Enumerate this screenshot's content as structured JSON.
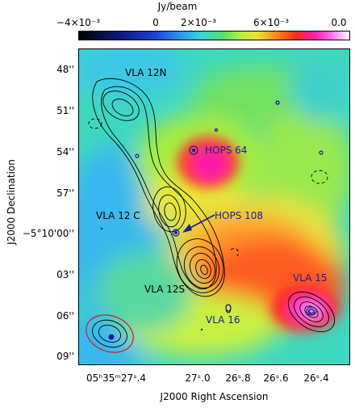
{
  "colorbar": {
    "title": "Jy/beam",
    "ticks": [
      "−4×10⁻³",
      "0",
      "2×10⁻³",
      "6×10⁻³",
      "0.0"
    ]
  },
  "axes": {
    "xlabel": "J2000 Right Ascension",
    "ylabel": "J2000 Declination",
    "yticks": [
      "48''",
      "51''",
      "54''",
      "57''",
      "−5°10'00''",
      "03''",
      "06''",
      "09''"
    ],
    "xticks": [
      "05ʰ35ᵐ27ˢ.4",
      "27ˢ.0",
      "26ˢ.8",
      "26ˢ.6",
      "26ˢ.4"
    ]
  },
  "sources": {
    "vla12n": "VLA 12N",
    "hops64": "HOPS 64",
    "vla12c": "VLA 12 C",
    "hops108": "HOPS 108",
    "vla12s": "VLA 12S",
    "vla15": "VLA 15",
    "vla16": "VLA 16"
  },
  "colors": {
    "annotation": "#1a1aa0",
    "beam_outline": "#cc2222",
    "contour": "#000000"
  }
}
